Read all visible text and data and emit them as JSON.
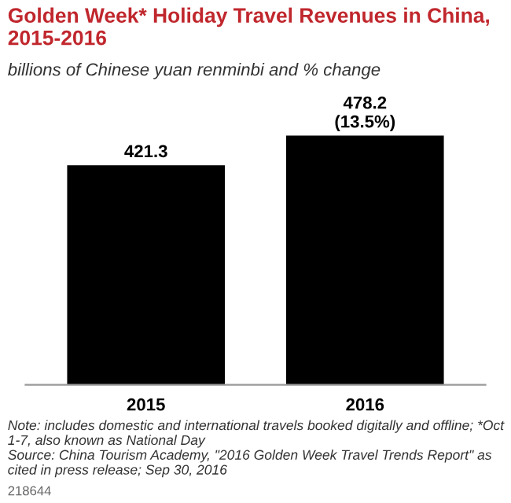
{
  "chart_data": {
    "type": "bar",
    "title": "Golden Week* Holiday Travel Revenues in China, 2015-2016",
    "subtitle": "billions of Chinese yuan renminbi and % change",
    "categories": [
      "2015",
      "2016"
    ],
    "values": [
      421.3,
      478.2
    ],
    "color": "#000000",
    "value_labels": [
      "421.3",
      "478.2\n(13.5%)"
    ],
    "annotations": [
      "Note: includes domestic and international travels booked digitally and offline; *Oct 1-7, also known as National Day\nSource: China Tourism Academy, \"2016 Golden Week Travel Trends Report\" as cited in press release; Sep 30, 2016",
      "218644"
    ]
  }
}
